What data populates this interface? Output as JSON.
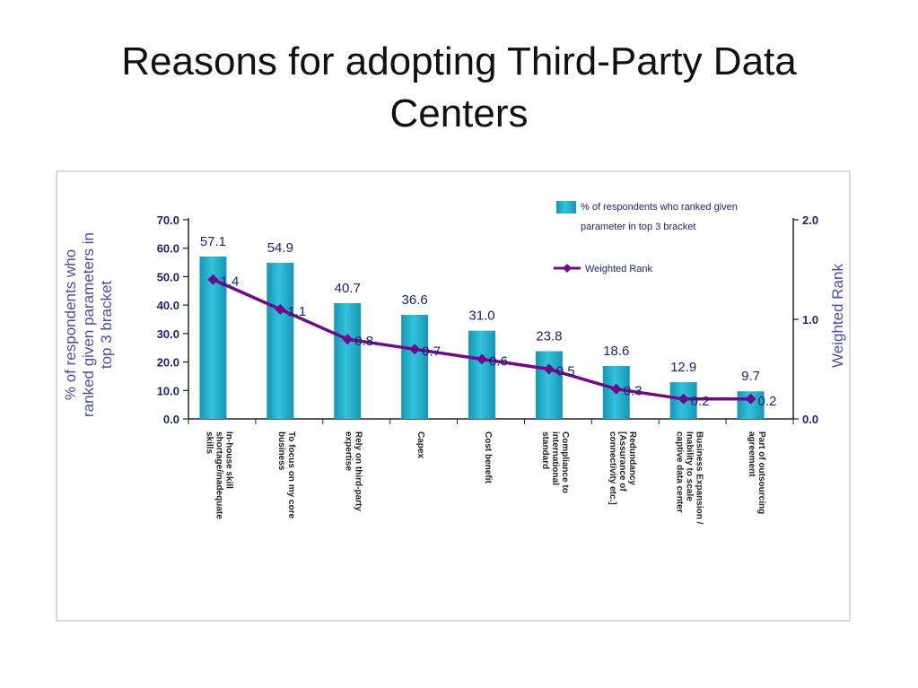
{
  "slide": {
    "title_line1": "Reasons for adopting Third-Party Data",
    "title_line2": "Centers"
  },
  "colors": {
    "bar": "#33c2dd",
    "bar_dark": "#1796b3",
    "line": "#6e0b8a",
    "text": "#1a1f7a",
    "axis_title": "#4a4aa8"
  },
  "chart_data": {
    "type": "bar",
    "title": "",
    "categories": [
      [
        "In-house skill",
        "shortage/inadequate",
        "skills"
      ],
      [
        "To focus on my core",
        "business"
      ],
      [
        "Rely on third-party",
        "expertise"
      ],
      [
        "Capex"
      ],
      [
        "Cost benefit"
      ],
      [
        "Compliance to",
        "international",
        "standard"
      ],
      [
        "Redundancy",
        "[Assurance of",
        "connectivity etc.]"
      ],
      [
        "Business Expansion /",
        "Inability to scale",
        "captive data center"
      ],
      [
        "Part of outsourcing",
        "agreement"
      ]
    ],
    "series": [
      {
        "name": "% of respondents who ranked given parameter in top 3 bracket",
        "axis": "left",
        "type": "bar",
        "values": [
          57.1,
          54.9,
          40.7,
          36.6,
          31.0,
          23.8,
          18.6,
          12.9,
          9.7
        ],
        "labels": [
          "57.1",
          "54.9",
          "40.7",
          "36.6",
          "31.0",
          "23.8",
          "18.6",
          "12.9",
          "9.7"
        ]
      },
      {
        "name": "Weighted Rank",
        "axis": "right",
        "type": "line",
        "values": [
          1.4,
          1.1,
          0.8,
          0.7,
          0.6,
          0.5,
          0.3,
          0.2,
          0.2
        ],
        "labels": [
          "1.4",
          "1.1",
          "0.8",
          "0.7",
          "0.6",
          "0.5",
          "0.3",
          "0.2",
          "0.2"
        ]
      }
    ],
    "ylabel": [
      "% of respondents who",
      "ranked given parameters in",
      "top 3 bracket"
    ],
    "y2label": "Weighted Rank",
    "ylim": [
      0,
      70
    ],
    "yticks": [
      "0.0",
      "10.0",
      "20.0",
      "30.0",
      "40.0",
      "50.0",
      "60.0",
      "70.0"
    ],
    "y2lim": [
      0,
      2
    ],
    "y2ticks": [
      "0.0",
      "1.0",
      "2.0"
    ],
    "grid": false,
    "legend": {
      "position": "top-right",
      "bar_text": [
        "% of respondents who ranked given",
        "parameter in top 3 bracket"
      ],
      "line_text": "Weighted Rank"
    }
  }
}
